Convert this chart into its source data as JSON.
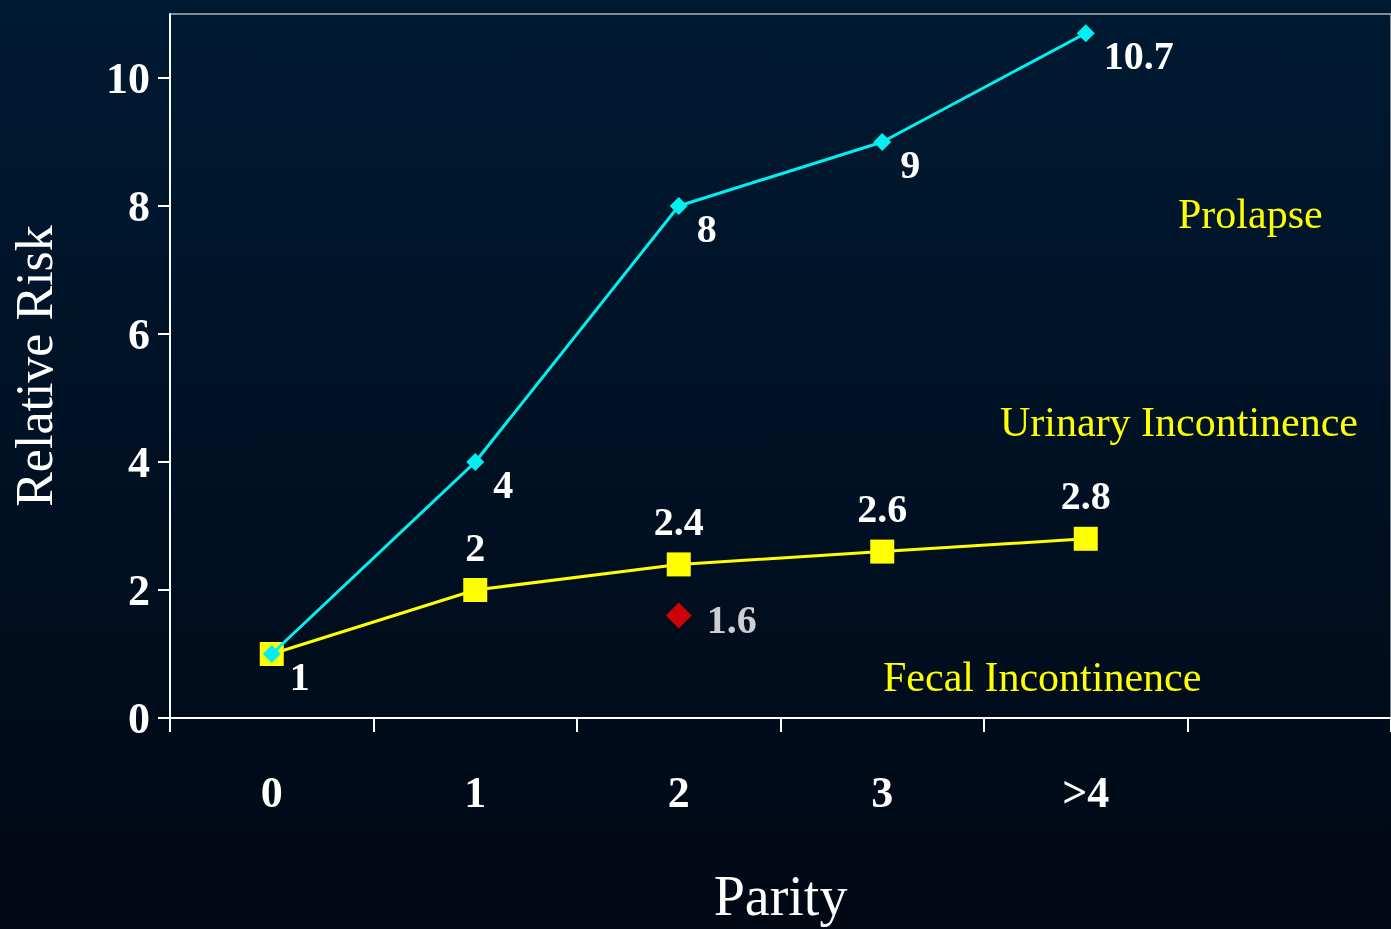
{
  "chart_data": {
    "type": "line",
    "xlabel": "Parity",
    "ylabel": "Relative Risk",
    "categories": [
      "0",
      "1",
      "2",
      "3",
      ">4",
      null
    ],
    "ylim": [
      0,
      11
    ],
    "yticks": [
      0,
      2,
      4,
      6,
      8,
      10
    ],
    "grid": false,
    "line_style": "solid",
    "annotations": [
      "Prolapse",
      "Urinary Incontinence",
      "Fecal Incontinence"
    ],
    "series": [
      {
        "color": "#00f0f0",
        "marker": "diamond",
        "values": [
          1,
          4,
          8,
          9,
          10.7,
          null
        ],
        "value_labels": [
          "1",
          "4",
          "8",
          "9",
          "10.7",
          null
        ]
      },
      {
        "color": "#ffff00",
        "marker": "square",
        "values": [
          1,
          2,
          2.4,
          2.6,
          2.8,
          null
        ],
        "value_labels": [
          null,
          "2",
          "2.4",
          "2.6",
          "2.8",
          null
        ]
      },
      {
        "type": "scatter",
        "color": "#ff0000",
        "marker": "diamond",
        "x": [
          "2"
        ],
        "values": [
          1.6
        ],
        "value_labels": [
          "1.6"
        ]
      }
    ]
  }
}
